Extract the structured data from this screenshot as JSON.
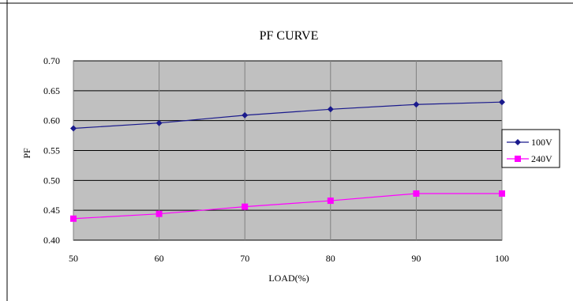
{
  "chart_data": {
    "type": "line",
    "title": "PF CURVE",
    "xlabel": "LOAD(%)",
    "ylabel": "PF",
    "x": [
      50,
      60,
      70,
      80,
      90,
      100
    ],
    "x_tick_labels": [
      "50",
      "60",
      "70",
      "80",
      "90",
      "100"
    ],
    "y_tick_labels": [
      "0.70",
      "0.65",
      "0.60",
      "0.55",
      "0.50",
      "0.45",
      "0.40"
    ],
    "xlim": [
      50,
      100
    ],
    "ylim": [
      0.4,
      0.7
    ],
    "y_ticks": [
      0.7,
      0.65,
      0.6,
      0.55,
      0.5,
      0.45,
      0.4
    ],
    "grid": true,
    "legend_position": "right",
    "plot_background": "#c0c0c0",
    "series": [
      {
        "name": "100V",
        "color": "#1a1a8c",
        "marker": "diamond",
        "values": [
          0.587,
          0.596,
          0.609,
          0.619,
          0.627,
          0.631
        ]
      },
      {
        "name": "240V",
        "color": "#ff00ff",
        "marker": "square",
        "values": [
          0.436,
          0.444,
          0.456,
          0.466,
          0.478,
          0.478
        ]
      }
    ]
  }
}
